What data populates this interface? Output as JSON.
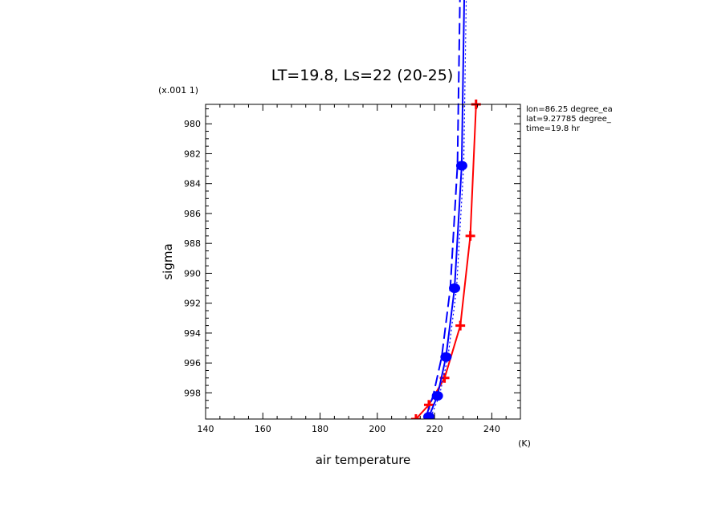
{
  "chart_data": {
    "type": "line",
    "title": "LT=19.8, Ls=22 (20-25)",
    "xlabel": "air temperature",
    "xunit": "(K)",
    "ylabel": "sigma",
    "yscale_label": "(x.001 1)",
    "xlim": [
      140,
      250
    ],
    "ylim": [
      999.75,
      978.7
    ],
    "x_major_ticks": [
      140,
      160,
      180,
      200,
      220,
      240
    ],
    "x_tick_labels": [
      "140",
      "160",
      "180",
      "200",
      "220",
      "240"
    ],
    "y_major_ticks": [
      980,
      982,
      984,
      986,
      988,
      990,
      992,
      994,
      996,
      998
    ],
    "y_tick_labels": [
      "980",
      "982",
      "984",
      "986",
      "988",
      "990",
      "992",
      "994",
      "996",
      "998"
    ],
    "annotations": [
      "lon=86.25 degree_ea",
      "lat=9.27785 degree_",
      "time=19.8 hr"
    ],
    "series": [
      {
        "color": "#ff0000",
        "style": "solid",
        "marker": "plus",
        "points": [
          {
            "x": 213.5,
            "y": 999.75
          },
          {
            "x": 218,
            "y": 998.8
          },
          {
            "x": 223.5,
            "y": 997.0
          },
          {
            "x": 229,
            "y": 993.5
          },
          {
            "x": 232.5,
            "y": 987.5
          },
          {
            "x": 234.5,
            "y": 978.7
          }
        ]
      },
      {
        "color": "#0000ff",
        "style": "solid",
        "marker": "circle",
        "points": [
          {
            "x": 218,
            "y": 999.6
          },
          {
            "x": 221,
            "y": 998.2
          },
          {
            "x": 224,
            "y": 995.6
          },
          {
            "x": 227,
            "y": 991.0
          },
          {
            "x": 229.5,
            "y": 982.8
          },
          {
            "x": 230.5,
            "y": 970.0
          }
        ]
      },
      {
        "color": "#0000ff",
        "style": "dashed",
        "marker": "none",
        "points": [
          {
            "x": 217,
            "y": 999.6
          },
          {
            "x": 219.5,
            "y": 998.2
          },
          {
            "x": 222.5,
            "y": 995.6
          },
          {
            "x": 225.5,
            "y": 991.0
          },
          {
            "x": 228,
            "y": 982.8
          },
          {
            "x": 229,
            "y": 970.0
          }
        ]
      },
      {
        "color": "#0000ff",
        "style": "dotted",
        "marker": "none",
        "points": [
          {
            "x": 218.7,
            "y": 999.6
          },
          {
            "x": 221.7,
            "y": 998.2
          },
          {
            "x": 224.7,
            "y": 995.6
          },
          {
            "x": 227.7,
            "y": 991.0
          },
          {
            "x": 230.2,
            "y": 982.8
          },
          {
            "x": 231.2,
            "y": 970.0
          }
        ]
      }
    ]
  }
}
